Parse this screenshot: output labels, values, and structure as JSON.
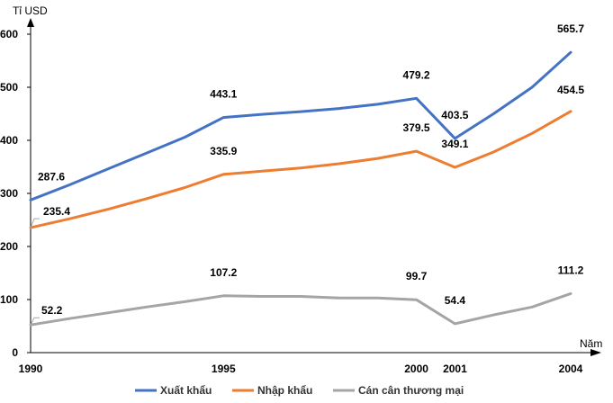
{
  "chart_data": {
    "type": "line",
    "ylabel": "Tỉ USD",
    "xlabel": "Năm",
    "ylim": [
      0,
      600
    ],
    "yticks": [
      "0",
      "100",
      "200",
      "300",
      "400",
      "500",
      "600"
    ],
    "xticks": [
      "1990",
      "1995",
      "2000",
      "2001",
      "2004"
    ],
    "legend_position": "bottom",
    "grid": false,
    "series": [
      {
        "name": "Xuất khẩu",
        "color": "#4472C4",
        "x": [
          1990,
          1991,
          1992,
          1993,
          1994,
          1995,
          1996,
          1997,
          1998,
          1999,
          2000,
          2001,
          2002,
          2003,
          2004
        ],
        "values": [
          287.6,
          316,
          346,
          376,
          406,
          443.1,
          449,
          454,
          460,
          468,
          479.2,
          403.5,
          450,
          500,
          565.7
        ],
        "labels": [
          {
            "x": 1990,
            "value": 287.6,
            "text": "287.6"
          },
          {
            "x": 1995,
            "value": 443.1,
            "text": "443.1"
          },
          {
            "x": 2000,
            "value": 479.2,
            "text": "479.2"
          },
          {
            "x": 2001,
            "value": 403.5,
            "text": "403.5"
          },
          {
            "x": 2004,
            "value": 565.7,
            "text": "565.7"
          }
        ]
      },
      {
        "name": "Nhập khẩu",
        "color": "#ED7D31",
        "x": [
          1990,
          1991,
          1992,
          1993,
          1994,
          1995,
          1996,
          1997,
          1998,
          1999,
          2000,
          2001,
          2002,
          2003,
          2004
        ],
        "values": [
          235.4,
          252,
          270,
          290,
          311,
          335.9,
          342,
          348,
          356,
          366,
          379.5,
          349.1,
          378,
          413,
          454.5
        ],
        "labels": [
          {
            "x": 1990,
            "value": 235.4,
            "text": "235.4"
          },
          {
            "x": 1995,
            "value": 335.9,
            "text": "335.9"
          },
          {
            "x": 2000,
            "value": 379.5,
            "text": "379.5"
          },
          {
            "x": 2001,
            "value": 349.1,
            "text": "349.1"
          },
          {
            "x": 2004,
            "value": 454.5,
            "text": "454.5"
          }
        ]
      },
      {
        "name": "Cán cân thương mại",
        "color": "#A5A5A5",
        "x": [
          1990,
          1991,
          1992,
          1993,
          1994,
          1995,
          1996,
          1997,
          1998,
          1999,
          2000,
          2001,
          2002,
          2003,
          2004
        ],
        "values": [
          52.2,
          64,
          75,
          86,
          96,
          107.2,
          106,
          106,
          103,
          103,
          99.7,
          54.4,
          71,
          86,
          111.2
        ],
        "labels": [
          {
            "x": 1990,
            "value": 52.2,
            "text": "52.2"
          },
          {
            "x": 1995,
            "value": 107.2,
            "text": "107.2"
          },
          {
            "x": 2000,
            "value": 99.7,
            "text": "99.7"
          },
          {
            "x": 2001,
            "value": 54.4,
            "text": "54.4"
          },
          {
            "x": 2004,
            "value": 111.2,
            "text": "111.2"
          }
        ]
      }
    ]
  }
}
